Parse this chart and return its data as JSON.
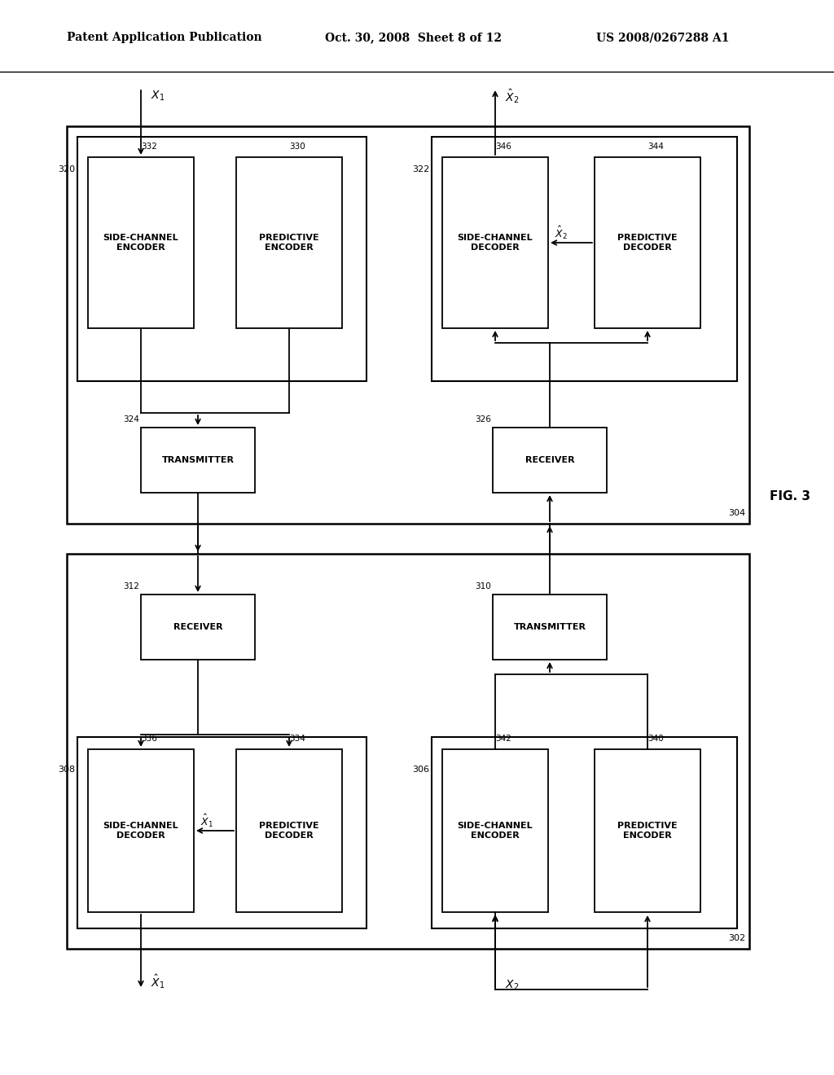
{
  "header_left": "Patent Application Publication",
  "header_mid": "Oct. 30, 2008  Sheet 8 of 12",
  "header_right": "US 2008/0267288 A1",
  "fig_label": "FIG. 3",
  "bg_color": "#ffffff"
}
